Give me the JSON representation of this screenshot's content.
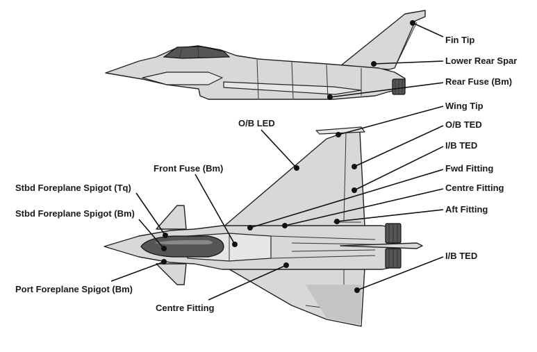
{
  "labels": {
    "fin_tip": "Fin Tip",
    "lower_rear_spar": "Lower Rear Spar",
    "rear_fuse_bm": "Rear Fuse (Bm)",
    "wing_tip": "Wing Tip",
    "ob_led": "O/B LED",
    "ob_ted": "O/B TED",
    "ib_ted_upper": "I/B TED",
    "front_fuse_bm": "Front Fuse (Bm)",
    "fwd_fitting": "Fwd Fitting",
    "stbd_foreplane_spigot_tq": "Stbd Foreplane Spigot (Tq)",
    "centre_fitting_right": "Centre Fitting",
    "aft_fitting": "Aft Fitting",
    "stbd_foreplane_spigot_bm": "Stbd Foreplane Spigot (Bm)",
    "ib_ted_lower": "I/B TED",
    "port_foreplane_spigot_bm": "Port Foreplane Spigot (Bm)",
    "centre_fitting_bottom": "Centre Fitting"
  },
  "colors": {
    "airframe": "#d8d8d8",
    "canopy": "#555555",
    "leader": "#111111"
  }
}
